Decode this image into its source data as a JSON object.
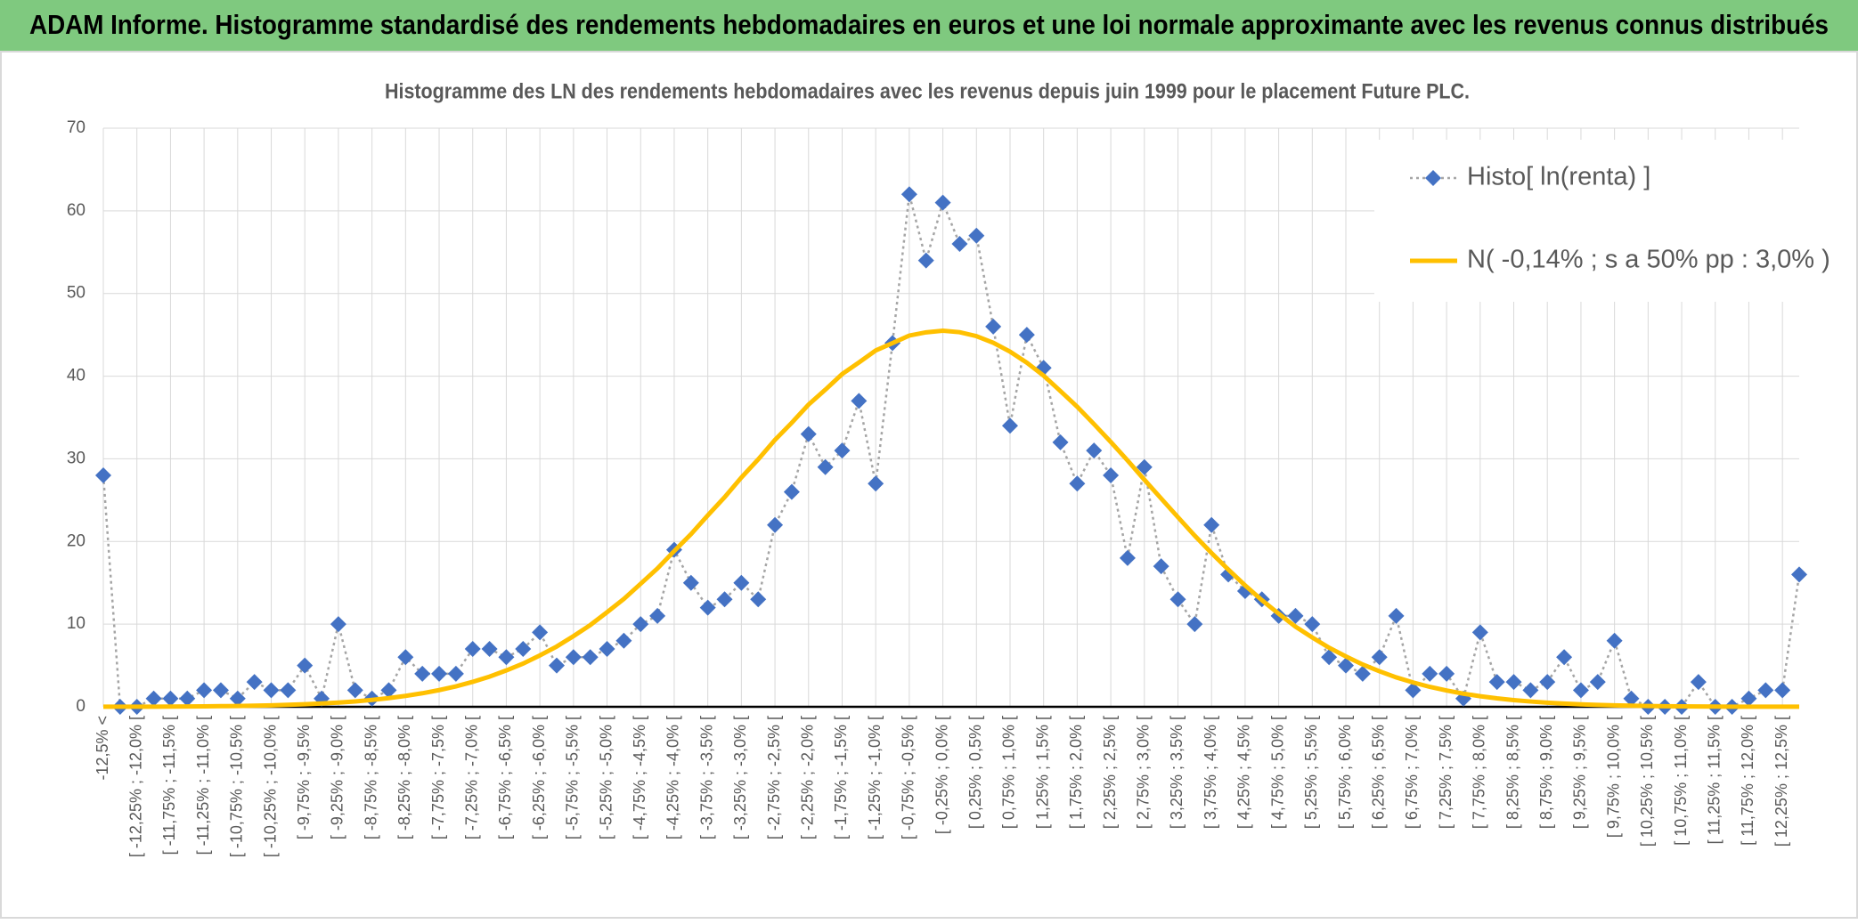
{
  "header": {
    "title": "ADAM Informe. Histogramme standardisé des rendements hebdomadaires en euros et une loi normale approximante avec les revenus connus distribués"
  },
  "chart_data": {
    "type": "line",
    "title": "Histogramme des LN des rendements hebdomadaires avec les revenus depuis juin 1999 pour le placement Future PLC.",
    "categories": [
      "-12,5% <",
      null,
      "[ -12,25% ; -12,0% [",
      null,
      "[ -11,75% ; -11,5% [",
      null,
      "[ -11,25% ; -11,0% [",
      null,
      "[ -10,75% ; -10,5% [",
      null,
      "[ -10,25% ; -10,0% [",
      null,
      "[ -9,75% ; -9,5% [",
      null,
      "[ -9,25% ; -9,0% [",
      null,
      "[ -8,75% ; -8,5% [",
      null,
      "[ -8,25% ; -8,0% [",
      null,
      "[ -7,75% ; -7,5% [",
      null,
      "[ -7,25% ; -7,0% [",
      null,
      "[ -6,75% ; -6,5% [",
      null,
      "[ -6,25% ; -6,0% [",
      null,
      "[ -5,75% ; -5,5% [",
      null,
      "[ -5,25% ; -5,0% [",
      null,
      "[ -4,75% ; -4,5% [",
      null,
      "[ -4,25% ; -4,0% [",
      null,
      "[ -3,75% ; -3,5% [",
      null,
      "[ -3,25% ; -3,0% [",
      null,
      "[ -2,75% ; -2,5% [",
      null,
      "[ -2,25% ; -2,0% [",
      null,
      "[ -1,75% ; -1,5% [",
      null,
      "[ -1,25% ; -1,0% [",
      null,
      "[ -0,75% ; -0,5% [",
      null,
      "[ -0,25% ; 0,0% [",
      null,
      "[ 0,25% ; 0,5% [",
      null,
      "[ 0,75% ; 1,0% [",
      null,
      "[ 1,25% ; 1,5% [",
      null,
      "[ 1,75% ; 2,0% [",
      null,
      "[ 2,25% ; 2,5% [",
      null,
      "[ 2,75% ; 3,0% [",
      null,
      "[ 3,25% ; 3,5% [",
      null,
      "[ 3,75% ; 4,0% [",
      null,
      "[ 4,25% ; 4,5% [",
      null,
      "[ 4,75% ; 5,0% [",
      null,
      "[ 5,25% ; 5,5% [",
      null,
      "[ 5,75% ; 6,0% [",
      null,
      "[ 6,25% ; 6,5% [",
      null,
      "[ 6,75% ; 7,0% [",
      null,
      "[ 7,25% ; 7,5% [",
      null,
      "[ 7,75% ; 8,0% [",
      null,
      "[ 8,25% ; 8,5% [",
      null,
      "[ 8,75% ; 9,0% [",
      null,
      "[ 9,25% ; 9,5% [",
      null,
      "[ 9,75% ; 10,0% [",
      null,
      "[ 10,25% ; 10,5% [",
      null,
      "[ 10,75% ; 11,0% [",
      null,
      "[ 11,25% ; 11,5% [",
      null,
      "[ 11,75% ; 12,0% [",
      null,
      "[ 12,25% ; 12,5% [",
      null
    ],
    "series": [
      {
        "name": "Histo[ ln(renta) ]",
        "color": "#4472c4",
        "line_color": "#a5a5a5",
        "line_style": "dotted",
        "marker": "diamond",
        "values": [
          28,
          0,
          0,
          1,
          1,
          1,
          2,
          2,
          1,
          3,
          2,
          2,
          5,
          1,
          10,
          2,
          1,
          2,
          6,
          4,
          4,
          4,
          7,
          7,
          6,
          7,
          9,
          5,
          6,
          6,
          7,
          8,
          10,
          11,
          19,
          15,
          12,
          13,
          15,
          13,
          22,
          26,
          33,
          29,
          31,
          37,
          27,
          44,
          62,
          54,
          61,
          56,
          57,
          46,
          34,
          45,
          41,
          32,
          27,
          31,
          28,
          18,
          29,
          17,
          13,
          10,
          22,
          16,
          14,
          13,
          11,
          11,
          10,
          6,
          5,
          4,
          6,
          11,
          2,
          4,
          4,
          1,
          9,
          3,
          3,
          2,
          3,
          6,
          2,
          3,
          8,
          1,
          0,
          0,
          0,
          3,
          0,
          0,
          1,
          2,
          2,
          16
        ]
      },
      {
        "name": "N( -0,14% ; s a 50% pp : 3,0% )",
        "color": "#ffc000",
        "line_style": "solid",
        "marker": "none",
        "values": [
          0.01,
          0.01,
          0.02,
          0.02,
          0.03,
          0.04,
          0.06,
          0.08,
          0.1,
          0.13,
          0.18,
          0.24,
          0.31,
          0.4,
          0.51,
          0.65,
          0.83,
          1.05,
          1.32,
          1.64,
          2.02,
          2.47,
          3.02,
          3.65,
          4.4,
          5.23,
          6.22,
          7.29,
          8.55,
          9.89,
          11.44,
          13.05,
          14.88,
          16.74,
          18.84,
          20.89,
          23.16,
          25.35,
          27.74,
          29.93,
          32.29,
          34.36,
          36.56,
          38.36,
          40.25,
          41.66,
          43.11,
          44.0,
          44.91,
          45.3,
          45.5,
          45.32,
          44.84,
          44.04,
          42.97,
          41.63,
          40.06,
          38.2,
          36.3,
          34.2,
          32.04,
          29.8,
          27.47,
          25.2,
          22.94,
          20.7,
          18.6,
          16.6,
          14.69,
          12.9,
          11.26,
          9.7,
          8.39,
          7.15,
          6.1,
          5.12,
          4.3,
          3.56,
          2.95,
          2.41,
          1.97,
          1.59,
          1.28,
          1.02,
          0.81,
          0.64,
          0.5,
          0.39,
          0.3,
          0.23,
          0.17,
          0.13,
          0.1,
          0.07,
          0.05,
          0.04,
          0.03,
          0.02,
          0.02,
          0.01,
          0.01,
          0.01
        ]
      }
    ],
    "ylim": [
      0,
      70
    ],
    "yticks": [
      0,
      10,
      20,
      30,
      40,
      50,
      60,
      70
    ],
    "grid": true,
    "legend": "top right"
  }
}
